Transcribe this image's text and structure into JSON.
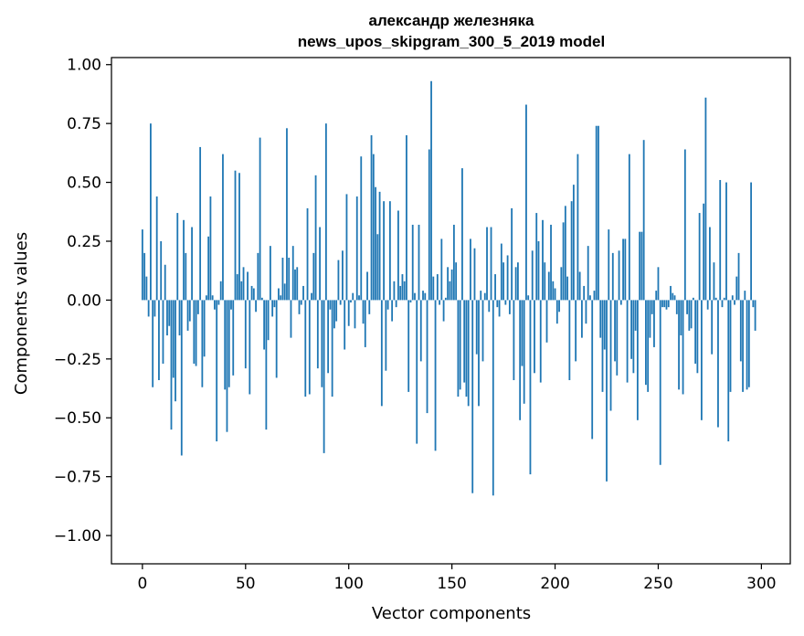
{
  "chart_data": {
    "type": "bar",
    "title": "александр железняка",
    "subtitle": "news_upos_skipgram_300_5_2019 model",
    "xlabel": "Vector components",
    "ylabel": "Components values",
    "xlim": [
      -15,
      314
    ],
    "ylim": [
      -1.12,
      1.03
    ],
    "x_ticks": [
      0,
      50,
      100,
      150,
      200,
      250,
      300
    ],
    "x_tick_labels": [
      "0",
      "50",
      "100",
      "150",
      "200",
      "250",
      "300"
    ],
    "y_ticks": [
      1.0,
      0.75,
      0.5,
      0.25,
      0.0,
      -0.25,
      -0.5,
      -0.75,
      -1.0
    ],
    "y_tick_labels": [
      "1.00",
      "0.75",
      "0.50",
      "0.25",
      "0.00",
      "−0.25",
      "−0.50",
      "−0.75",
      "−1.00"
    ],
    "bar_color": "#1f77b4",
    "values": [
      0.3,
      0.2,
      0.1,
      -0.07,
      0.75,
      -0.37,
      -0.07,
      0.44,
      -0.34,
      0.25,
      -0.27,
      0.15,
      -0.15,
      -0.11,
      -0.55,
      -0.33,
      -0.43,
      0.37,
      -0.15,
      -0.66,
      0.34,
      0.2,
      -0.13,
      -0.09,
      0.31,
      -0.27,
      -0.28,
      -0.06,
      0.65,
      -0.37,
      -0.24,
      0.02,
      0.27,
      0.44,
      0.02,
      -0.04,
      -0.6,
      -0.02,
      0.08,
      0.62,
      -0.38,
      -0.56,
      -0.37,
      -0.04,
      -0.32,
      0.55,
      0.11,
      0.54,
      0.08,
      0.14,
      -0.29,
      0.12,
      -0.4,
      0.06,
      0.05,
      -0.05,
      0.2,
      0.69,
      0.01,
      -0.21,
      -0.55,
      -0.17,
      0.23,
      -0.07,
      -0.03,
      -0.33,
      0.05,
      0.02,
      0.18,
      0.07,
      0.73,
      0.18,
      -0.16,
      0.23,
      0.13,
      0.14,
      -0.06,
      -0.02,
      0.06,
      -0.41,
      0.39,
      -0.4,
      0.03,
      0.2,
      0.53,
      -0.29,
      0.31,
      -0.37,
      -0.65,
      0.75,
      -0.31,
      -0.04,
      -0.41,
      -0.12,
      -0.09,
      0.17,
      -0.02,
      0.21,
      -0.21,
      0.45,
      -0.11,
      -0.01,
      0.03,
      -0.12,
      0.44,
      0.02,
      0.61,
      -0.1,
      -0.2,
      0.12,
      -0.06,
      0.7,
      0.62,
      0.48,
      0.28,
      0.46,
      -0.45,
      0.42,
      -0.3,
      -0.04,
      0.42,
      -0.09,
      0.08,
      -0.03,
      0.38,
      0.06,
      0.11,
      0.08,
      0.7,
      -0.39,
      -0.01,
      0.32,
      0.03,
      -0.61,
      0.32,
      -0.26,
      0.04,
      0.03,
      -0.48,
      0.64,
      0.93,
      0.1,
      -0.64,
      0.11,
      -0.02,
      0.26,
      -0.09,
      0.01,
      0.14,
      0.08,
      0.13,
      0.32,
      0.16,
      -0.41,
      -0.38,
      0.56,
      -0.35,
      -0.41,
      -0.45,
      0.26,
      -0.82,
      0.22,
      -0.23,
      -0.45,
      0.04,
      -0.26,
      0.03,
      0.31,
      -0.05,
      0.31,
      -0.83,
      0.11,
      -0.03,
      -0.07,
      0.24,
      0.16,
      -0.02,
      0.19,
      -0.06,
      0.39,
      -0.34,
      0.14,
      0.16,
      -0.51,
      -0.28,
      -0.44,
      0.83,
      0.02,
      -0.74,
      0.21,
      -0.31,
      0.37,
      0.25,
      -0.35,
      0.34,
      0.16,
      -0.18,
      0.12,
      0.32,
      0.08,
      0.05,
      -0.1,
      -0.05,
      0.14,
      0.33,
      0.4,
      0.1,
      -0.34,
      0.42,
      0.49,
      -0.26,
      0.62,
      0.12,
      -0.16,
      0.06,
      -0.1,
      0.23,
      0.02,
      -0.59,
      0.04,
      0.74,
      0.74,
      -0.16,
      -0.39,
      -0.21,
      -0.77,
      0.3,
      -0.47,
      0.2,
      -0.26,
      -0.32,
      0.21,
      -0.02,
      0.26,
      0.26,
      -0.35,
      0.62,
      -0.25,
      -0.31,
      -0.13,
      -0.51,
      0.29,
      0.29,
      0.68,
      -0.36,
      -0.39,
      -0.16,
      -0.06,
      -0.2,
      0.04,
      0.14,
      -0.7,
      -0.03,
      -0.03,
      -0.04,
      -0.03,
      0.06,
      0.03,
      0.02,
      -0.06,
      -0.38,
      -0.15,
      -0.4,
      0.64,
      -0.06,
      -0.13,
      -0.12,
      0.01,
      -0.27,
      -0.31,
      0.37,
      -0.51,
      0.41,
      0.86,
      -0.04,
      0.31,
      -0.23,
      0.16,
      0.01,
      -0.54,
      0.51,
      -0.03,
      0.01,
      0.5,
      -0.6,
      -0.39,
      0.02,
      -0.02,
      0.1,
      0.2,
      -0.26,
      -0.39,
      0.04,
      -0.38,
      -0.37,
      0.5,
      -0.03,
      -0.13
    ]
  }
}
